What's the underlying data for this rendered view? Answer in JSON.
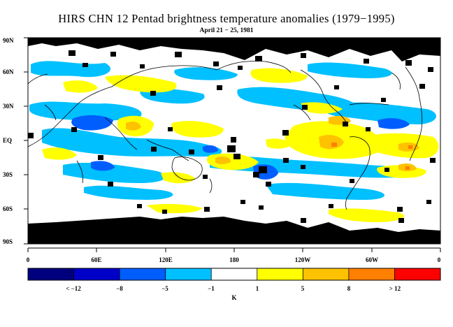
{
  "title": "HIRS CHN 12 Pentad brightness temperature anomalies (1979−1995)",
  "subtitle": "April 21 − 25, 1981",
  "lat_labels": [
    "90N",
    "60N",
    "30N",
    "EQ",
    "30S",
    "60S",
    "90S"
  ],
  "lon_labels": [
    "0",
    "60E",
    "120E",
    "180",
    "120W",
    "60W",
    "0"
  ],
  "colorbar": {
    "colors": [
      "#00007f",
      "#0000c8",
      "#005eff",
      "#00c0ff",
      "#ffffff",
      "#ffff00",
      "#ffc200",
      "#ff8000",
      "#ff0000"
    ],
    "labels": [
      "< −12",
      "−8",
      "−5",
      "−1",
      "1",
      "5",
      "8",
      "> 12"
    ],
    "unit": "K"
  },
  "colors": {
    "missing": "#000000",
    "coast": "#000000",
    "background": "#ffffff"
  }
}
